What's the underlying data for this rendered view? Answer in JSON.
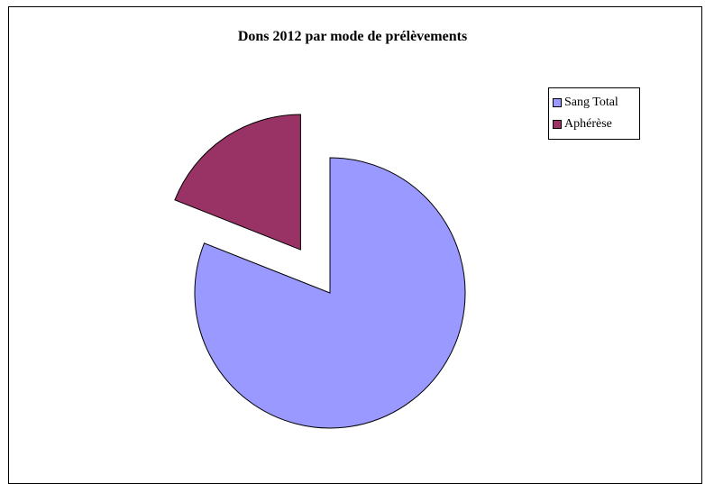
{
  "chart_data": {
    "type": "pie",
    "title": "Dons 2012 par mode de prélèvements",
    "categories": [
      "Sang Total",
      "Aphérèse"
    ],
    "values": [
      81,
      19
    ],
    "colors": [
      "#9999ff",
      "#993366"
    ],
    "exploded": [
      false,
      true
    ],
    "legend_position": "top-right"
  }
}
